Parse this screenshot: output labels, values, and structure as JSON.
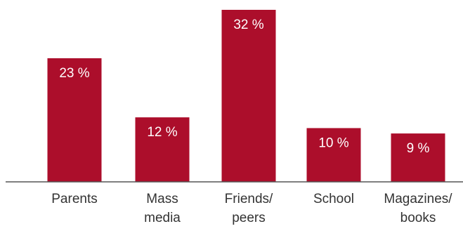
{
  "chart_data": {
    "type": "bar",
    "categories": [
      [
        "Parents"
      ],
      [
        "Mass",
        "media"
      ],
      [
        "Friends/",
        "peers"
      ],
      [
        "School"
      ],
      [
        "Magazines/",
        "books"
      ]
    ],
    "values": [
      23,
      12,
      32,
      10,
      9
    ],
    "value_labels": [
      "23 %",
      "12 %",
      "32 %",
      "10 %",
      "9 %"
    ],
    "unit": "%",
    "ylim": [
      0,
      32
    ],
    "grid": false,
    "legend": "none",
    "title": "",
    "xlabel": "",
    "ylabel": "",
    "colors": {
      "bar": "#ac0e2b",
      "axis": "#555555",
      "label_text": "#333333",
      "value_text": "#ffffff"
    }
  }
}
